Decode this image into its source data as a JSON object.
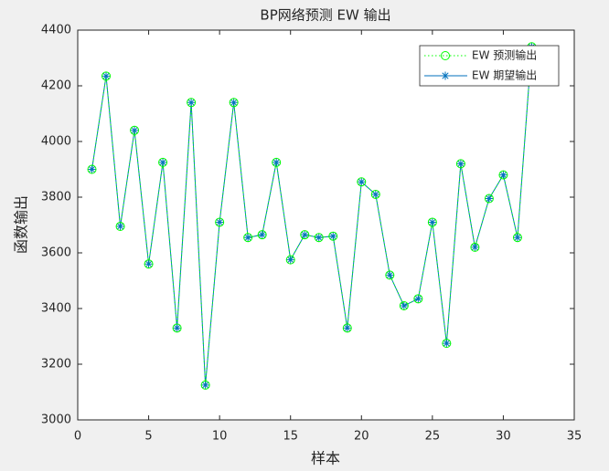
{
  "chart_data": {
    "type": "line",
    "title": "BP网络预测 EW 输出",
    "xlabel": "样本",
    "ylabel": "函数输出",
    "x": [
      1,
      2,
      3,
      4,
      5,
      6,
      7,
      8,
      9,
      10,
      11,
      12,
      13,
      14,
      15,
      16,
      17,
      18,
      19,
      20,
      21,
      22,
      23,
      24,
      25,
      26,
      27,
      28,
      29,
      30,
      31,
      32
    ],
    "series": [
      {
        "name": "EW 预测输出",
        "color": "#00ff00",
        "marker": "circle",
        "linestyle": "dotted",
        "values": [
          3900,
          4235,
          3695,
          4040,
          3560,
          3925,
          3330,
          4140,
          3125,
          3710,
          4140,
          3655,
          3665,
          3925,
          3575,
          3665,
          3655,
          3660,
          3330,
          3855,
          3810,
          3520,
          3410,
          3435,
          3710,
          3275,
          3920,
          3620,
          3795,
          3880,
          3655,
          4340
        ]
      },
      {
        "name": "EW 期望输出",
        "color": "#0072bd",
        "marker": "asterisk",
        "linestyle": "solid",
        "values": [
          3900,
          4235,
          3695,
          4040,
          3560,
          3925,
          3330,
          4140,
          3125,
          3710,
          4140,
          3655,
          3665,
          3925,
          3575,
          3665,
          3655,
          3660,
          3330,
          3855,
          3810,
          3520,
          3410,
          3435,
          3710,
          3275,
          3920,
          3620,
          3795,
          3880,
          3655,
          4340
        ]
      }
    ],
    "xlim": [
      0,
      35
    ],
    "xticks": [
      0,
      5,
      10,
      15,
      20,
      25,
      30,
      35
    ],
    "ylim": [
      3000,
      4400
    ],
    "yticks": [
      3000,
      3200,
      3400,
      3600,
      3800,
      4000,
      4200,
      4400
    ],
    "grid": false,
    "legend": "top-right"
  }
}
